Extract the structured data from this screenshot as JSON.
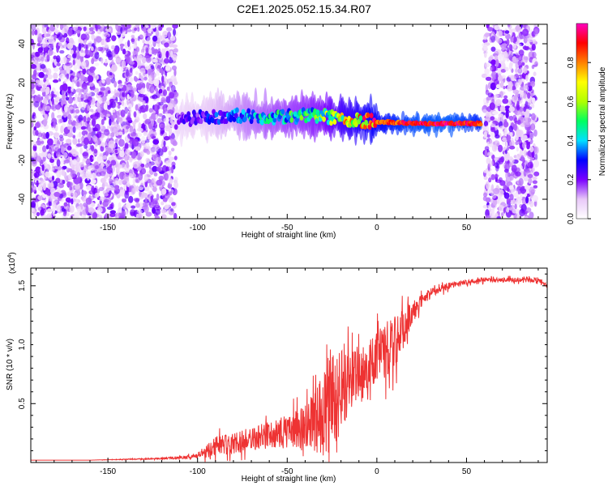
{
  "title": "C2E1.2025.052.15.34.R07",
  "chart_data": [
    {
      "type": "heatmap",
      "xlabel": "Height of straight line (km)",
      "ylabel": "Frequency (Hz)",
      "xlim": [
        -193,
        95
      ],
      "ylim": [
        -50,
        50
      ],
      "xticks": [
        -150,
        -100,
        -50,
        0,
        50
      ],
      "yticks": [
        -40,
        -20,
        0,
        20,
        40
      ],
      "colorbar": {
        "label": "Normalized spectral amplitude",
        "range": [
          0,
          1
        ],
        "ticks": [
          "0.0",
          "0.2",
          "0.4",
          "0.6",
          "0.8"
        ],
        "colors": [
          "#ffffff",
          "#e8c8f8",
          "#7a00ff",
          "#0000ff",
          "#00e0ff",
          "#00ff60",
          "#b0ff00",
          "#ffff00",
          "#ff8000",
          "#ff0000",
          "#ff00c0"
        ]
      },
      "features": [
        {
          "name": "noise",
          "x": [
            -193,
            -112
          ],
          "freq_range": [
            -50,
            50
          ],
          "amplitude": 0.12
        },
        {
          "name": "signal",
          "x": [
            -112,
            58
          ],
          "freq_center": [
            0,
            2,
            3,
            2,
            3,
            3,
            1,
            0,
            -1,
            -1,
            -1
          ],
          "x_points": [
            -112,
            -100,
            -80,
            -60,
            -40,
            -30,
            -20,
            0,
            20,
            40,
            58
          ],
          "amplitude": [
            0.2,
            0.25,
            0.35,
            0.45,
            0.5,
            0.55,
            0.7,
            0.85,
            0.95,
            0.97,
            0.9
          ]
        },
        {
          "name": "noise",
          "x": [
            60,
            89
          ],
          "freq_range": [
            -50,
            50
          ],
          "amplitude": 0.12
        }
      ]
    },
    {
      "type": "line",
      "xlabel": "Height of straight line (km)",
      "ylabel": "SNR (10 * v/v)",
      "y_multiplier": "(x10",
      "y_multiplier_exp": "4",
      "y_multiplier_close": ")",
      "xlim": [
        -193,
        95
      ],
      "ylim": [
        0,
        1.65
      ],
      "xticks": [
        -150,
        -100,
        -50,
        0,
        50
      ],
      "yticks": [
        "0.5",
        "1.0",
        "1.5"
      ],
      "color": "#ee3333",
      "x": [
        -193,
        -160,
        -130,
        -110,
        -100,
        -95,
        -90,
        -80,
        -70,
        -60,
        -50,
        -40,
        -35,
        -30,
        -25,
        -20,
        -15,
        -10,
        -5,
        0,
        5,
        10,
        15,
        20,
        25,
        30,
        40,
        50,
        60,
        70,
        80,
        90,
        95
      ],
      "y": [
        0.02,
        0.02,
        0.03,
        0.04,
        0.06,
        0.1,
        0.14,
        0.16,
        0.2,
        0.23,
        0.26,
        0.3,
        0.35,
        0.42,
        0.55,
        0.6,
        0.7,
        0.75,
        0.82,
        0.88,
        0.95,
        1.02,
        1.15,
        1.28,
        1.38,
        1.44,
        1.5,
        1.53,
        1.55,
        1.55,
        1.55,
        1.55,
        1.5
      ],
      "noise": [
        0,
        0,
        0.005,
        0.01,
        0.02,
        0.06,
        0.08,
        0.09,
        0.1,
        0.12,
        0.14,
        0.18,
        0.25,
        0.38,
        0.45,
        0.35,
        0.25,
        0.2,
        0.2,
        0.22,
        0.25,
        0.22,
        0.18,
        0.1,
        0.06,
        0.04,
        0.03,
        0.02,
        0.02,
        0.02,
        0.02,
        0.02,
        0.02
      ]
    }
  ]
}
